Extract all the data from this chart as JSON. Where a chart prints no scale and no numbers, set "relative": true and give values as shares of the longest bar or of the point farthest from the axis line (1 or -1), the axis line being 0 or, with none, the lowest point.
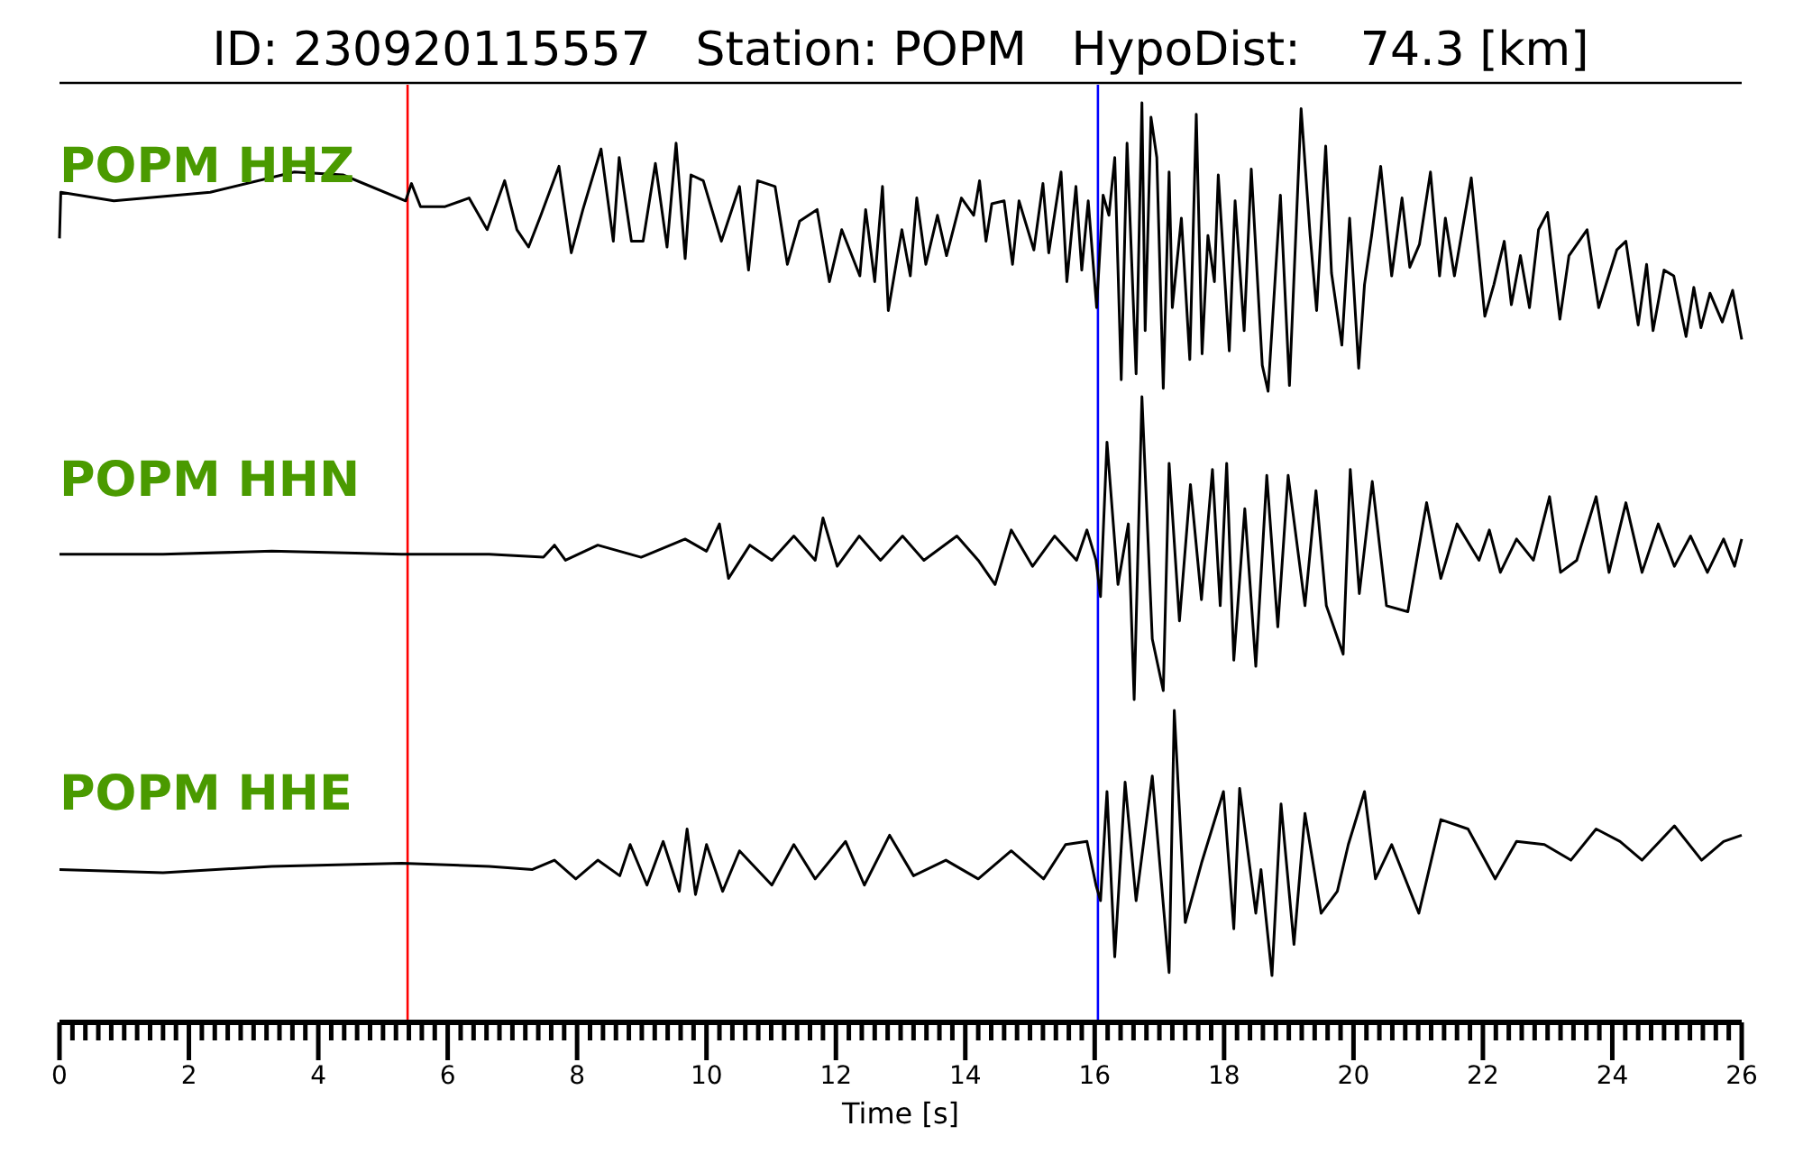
{
  "chart_data": [
    {
      "type": "line",
      "relative": true,
      "title": "ID: 230920115557   Station: POPM   HypoDist:    74.3 [km]",
      "xlim": [
        0,
        26
      ],
      "tick_labels": false,
      "annotations": [
        "POPM HHZ"
      ],
      "ref_lines": [
        {
          "axis": "x",
          "value": 5.38,
          "color": "#ff0000"
        },
        {
          "axis": "x",
          "value": 16.05,
          "color": "#0000ff"
        }
      ],
      "series": [
        {
          "color": "#000000",
          "x": [
            0,
            0.02,
            0.84,
            2.33,
            3.63,
            4.38,
            5.35,
            5.44,
            5.58,
            5.96,
            6.33,
            6.61,
            6.88,
            7.07,
            7.25,
            7.44,
            7.72,
            7.91,
            8.09,
            8.37,
            8.56,
            8.65,
            8.84,
            9.02,
            9.21,
            9.39,
            9.53,
            9.67,
            9.76,
            9.95,
            10.23,
            10.51,
            10.65,
            10.79,
            11.06,
            11.25,
            11.44,
            11.71,
            11.9,
            12.09,
            12.37,
            12.46,
            12.6,
            12.72,
            12.81,
            13.02,
            13.15,
            13.25,
            13.39,
            13.57,
            13.71,
            13.94,
            14.13,
            14.22,
            14.32,
            14.41,
            14.6,
            14.73,
            14.83,
            15.06,
            15.2,
            15.29,
            15.48,
            15.57,
            15.71,
            15.8,
            15.9,
            16.03,
            16.13,
            16.22,
            16.31,
            16.41,
            16.5,
            16.64,
            16.73,
            16.78,
            16.87,
            16.96,
            17.06,
            17.15,
            17.2,
            17.34,
            17.47,
            17.57,
            17.66,
            17.75,
            17.85,
            17.91,
            18.08,
            18.17,
            18.31,
            18.42,
            18.59,
            18.68,
            18.87,
            19.01,
            19.19,
            19.33,
            19.43,
            19.57,
            19.66,
            19.82,
            19.94,
            20.08,
            20.17,
            20.28,
            20.42,
            20.59,
            20.75,
            20.87,
            21.02,
            21.19,
            21.33,
            21.42,
            21.56,
            21.82,
            22.03,
            22.17,
            22.33,
            22.44,
            22.58,
            22.72,
            22.86,
            23,
            23.19,
            23.33,
            23.61,
            23.79,
            24.07,
            24.21,
            24.4,
            24.53,
            24.63,
            24.8,
            24.95,
            25.14,
            25.26,
            25.37,
            25.51,
            25.7,
            25.86,
            26
          ],
          "values": [
            0.53,
            0.69,
            0.66,
            0.69,
            0.76,
            0.75,
            0.66,
            0.72,
            0.64,
            0.64,
            0.67,
            0.56,
            0.73,
            0.56,
            0.5,
            0.61,
            0.78,
            0.48,
            0.63,
            0.84,
            0.52,
            0.81,
            0.52,
            0.52,
            0.79,
            0.5,
            0.86,
            0.46,
            0.75,
            0.73,
            0.52,
            0.71,
            0.42,
            0.73,
            0.71,
            0.44,
            0.59,
            0.63,
            0.38,
            0.56,
            0.4,
            0.63,
            0.38,
            0.71,
            0.28,
            0.56,
            0.4,
            0.67,
            0.44,
            0.61,
            0.47,
            0.67,
            0.61,
            0.73,
            0.52,
            0.65,
            0.66,
            0.44,
            0.66,
            0.49,
            0.72,
            0.48,
            0.76,
            0.38,
            0.71,
            0.42,
            0.66,
            0.29,
            0.68,
            0.61,
            0.81,
            0.04,
            0.86,
            0.06,
            1.0,
            0.21,
            0.95,
            0.81,
            0.01,
            0.76,
            0.29,
            0.6,
            0.11,
            0.96,
            0.13,
            0.54,
            0.38,
            0.75,
            0.14,
            0.66,
            0.21,
            0.77,
            0.09,
            0.0,
            0.68,
            0.02,
            0.98,
            0.54,
            0.28,
            0.85,
            0.41,
            0.16,
            0.6,
            0.08,
            0.37,
            0.54,
            0.78,
            0.4,
            0.67,
            0.43,
            0.51,
            0.76,
            0.4,
            0.6,
            0.4,
            0.74,
            0.26,
            0.37,
            0.52,
            0.3,
            0.47,
            0.29,
            0.56,
            0.62,
            0.25,
            0.47,
            0.56,
            0.29,
            0.49,
            0.52,
            0.23,
            0.44,
            0.21,
            0.42,
            0.4,
            0.19,
            0.36,
            0.22,
            0.34,
            0.24,
            0.35,
            0.18
          ]
        }
      ]
    },
    {
      "type": "line",
      "relative": true,
      "xlim": [
        0,
        26
      ],
      "tick_labels": false,
      "annotations": [
        "POPM HHN"
      ],
      "ref_lines": [
        {
          "axis": "x",
          "value": 5.38,
          "color": "#ff0000"
        },
        {
          "axis": "x",
          "value": 16.05,
          "color": "#0000ff"
        }
      ],
      "series": [
        {
          "color": "#000000",
          "x": [
            0,
            1.6,
            3.28,
            5.29,
            6.64,
            7.48,
            7.65,
            7.82,
            8.32,
            8.99,
            9.67,
            10,
            10.2,
            10.34,
            10.67,
            11.01,
            11.35,
            11.68,
            11.8,
            12.02,
            12.36,
            12.69,
            13.03,
            13.36,
            13.87,
            14.2,
            14.46,
            14.71,
            15.04,
            15.38,
            15.72,
            15.88,
            16.02,
            16.09,
            16.19,
            16.36,
            16.52,
            16.61,
            16.73,
            16.89,
            17.06,
            17.15,
            17.31,
            17.48,
            17.65,
            17.82,
            17.94,
            18.04,
            18.15,
            18.32,
            18.49,
            18.66,
            18.83,
            18.99,
            19.25,
            19.42,
            19.58,
            19.84,
            19.95,
            20.09,
            20.29,
            20.51,
            20.84,
            21.13,
            21.35,
            21.6,
            21.94,
            22.1,
            22.27,
            22.52,
            22.78,
            23.03,
            23.2,
            23.45,
            23.75,
            23.95,
            24.21,
            24.46,
            24.71,
            24.96,
            25.21,
            25.47,
            25.72,
            25.89,
            26
          ],
          "values": [
            0.48,
            0.48,
            0.49,
            0.48,
            0.48,
            0.47,
            0.51,
            0.46,
            0.51,
            0.47,
            0.53,
            0.49,
            0.58,
            0.4,
            0.51,
            0.46,
            0.54,
            0.46,
            0.6,
            0.44,
            0.54,
            0.46,
            0.54,
            0.46,
            0.54,
            0.46,
            0.38,
            0.56,
            0.44,
            0.54,
            0.46,
            0.56,
            0.46,
            0.34,
            0.85,
            0.38,
            0.58,
            0.0,
            1.0,
            0.2,
            0.03,
            0.78,
            0.26,
            0.71,
            0.33,
            0.76,
            0.31,
            0.78,
            0.13,
            0.63,
            0.11,
            0.74,
            0.24,
            0.74,
            0.31,
            0.69,
            0.31,
            0.15,
            0.76,
            0.35,
            0.72,
            0.31,
            0.29,
            0.65,
            0.4,
            0.58,
            0.46,
            0.56,
            0.42,
            0.53,
            0.46,
            0.67,
            0.42,
            0.46,
            0.67,
            0.42,
            0.65,
            0.42,
            0.58,
            0.44,
            0.54,
            0.42,
            0.53,
            0.44,
            0.53
          ]
        }
      ]
    },
    {
      "type": "line",
      "relative": true,
      "xlim": [
        0,
        26
      ],
      "tick_labels": "x",
      "xlabel": "Time [s]",
      "annotations": [
        "POPM HHE"
      ],
      "ref_lines": [
        {
          "axis": "x",
          "value": 5.38,
          "color": "#ff0000"
        },
        {
          "axis": "x",
          "value": 16.05,
          "color": "#0000ff"
        }
      ],
      "xticks": [
        0,
        {
          "value": 0.2,
          "label": null
        },
        {
          "value": 0.4,
          "label": null
        },
        {
          "value": 0.6,
          "label": null
        },
        {
          "value": 0.8,
          "label": null
        },
        {
          "value": 1,
          "label": null
        },
        {
          "value": 1.2,
          "label": null
        },
        {
          "value": 1.4,
          "label": null
        },
        {
          "value": 1.6,
          "label": null
        },
        {
          "value": 1.8,
          "label": null
        },
        2,
        {
          "value": 2.2,
          "label": null
        },
        {
          "value": 2.4,
          "label": null
        },
        {
          "value": 2.6,
          "label": null
        },
        {
          "value": 2.8,
          "label": null
        },
        {
          "value": 3,
          "label": null
        },
        {
          "value": 3.2,
          "label": null
        },
        {
          "value": 3.4,
          "label": null
        },
        {
          "value": 3.6,
          "label": null
        },
        {
          "value": 3.8,
          "label": null
        },
        4,
        {
          "value": 4.2,
          "label": null
        },
        {
          "value": 4.4,
          "label": null
        },
        {
          "value": 4.6,
          "label": null
        },
        {
          "value": 4.8,
          "label": null
        },
        {
          "value": 5,
          "label": null
        },
        {
          "value": 5.2,
          "label": null
        },
        {
          "value": 5.4,
          "label": null
        },
        {
          "value": 5.6,
          "label": null
        },
        {
          "value": 5.8,
          "label": null
        },
        6,
        {
          "value": 6.2,
          "label": null
        },
        {
          "value": 6.4,
          "label": null
        },
        {
          "value": 6.6,
          "label": null
        },
        {
          "value": 6.8,
          "label": null
        },
        {
          "value": 7,
          "label": null
        },
        {
          "value": 7.2,
          "label": null
        },
        {
          "value": 7.4,
          "label": null
        },
        {
          "value": 7.6,
          "label": null
        },
        {
          "value": 7.8,
          "label": null
        },
        8,
        {
          "value": 8.2,
          "label": null
        },
        {
          "value": 8.4,
          "label": null
        },
        {
          "value": 8.6,
          "label": null
        },
        {
          "value": 8.8,
          "label": null
        },
        {
          "value": 9,
          "label": null
        },
        {
          "value": 9.2,
          "label": null
        },
        {
          "value": 9.4,
          "label": null
        },
        {
          "value": 9.6,
          "label": null
        },
        {
          "value": 9.8,
          "label": null
        },
        10,
        {
          "value": 10.2,
          "label": null
        },
        {
          "value": 10.4,
          "label": null
        },
        {
          "value": 10.6,
          "label": null
        },
        {
          "value": 10.8,
          "label": null
        },
        {
          "value": 11,
          "label": null
        },
        {
          "value": 11.2,
          "label": null
        },
        {
          "value": 11.4,
          "label": null
        },
        {
          "value": 11.6,
          "label": null
        },
        {
          "value": 11.8,
          "label": null
        },
        12,
        {
          "value": 12.2,
          "label": null
        },
        {
          "value": 12.4,
          "label": null
        },
        {
          "value": 12.6,
          "label": null
        },
        {
          "value": 12.8,
          "label": null
        },
        {
          "value": 13,
          "label": null
        },
        {
          "value": 13.2,
          "label": null
        },
        {
          "value": 13.4,
          "label": null
        },
        {
          "value": 13.6,
          "label": null
        },
        {
          "value": 13.8,
          "label": null
        },
        14,
        {
          "value": 14.2,
          "label": null
        },
        {
          "value": 14.4,
          "label": null
        },
        {
          "value": 14.6,
          "label": null
        },
        {
          "value": 14.8,
          "label": null
        },
        {
          "value": 15,
          "label": null
        },
        {
          "value": 15.2,
          "label": null
        },
        {
          "value": 15.4,
          "label": null
        },
        {
          "value": 15.6,
          "label": null
        },
        {
          "value": 15.8,
          "label": null
        },
        16,
        {
          "value": 16.2,
          "label": null
        },
        {
          "value": 16.4,
          "label": null
        },
        {
          "value": 16.6,
          "label": null
        },
        {
          "value": 16.8,
          "label": null
        },
        {
          "value": 17,
          "label": null
        },
        {
          "value": 17.2,
          "label": null
        },
        {
          "value": 17.4,
          "label": null
        },
        {
          "value": 17.6,
          "label": null
        },
        {
          "value": 17.8,
          "label": null
        },
        18,
        {
          "value": 18.2,
          "label": null
        },
        {
          "value": 18.4,
          "label": null
        },
        {
          "value": 18.6,
          "label": null
        },
        {
          "value": 18.8,
          "label": null
        },
        {
          "value": 19,
          "label": null
        },
        {
          "value": 19.2,
          "label": null
        },
        {
          "value": 19.4,
          "label": null
        },
        {
          "value": 19.6,
          "label": null
        },
        {
          "value": 19.8,
          "label": null
        },
        20,
        {
          "value": 20.2,
          "label": null
        },
        {
          "value": 20.4,
          "label": null
        },
        {
          "value": 20.6,
          "label": null
        },
        {
          "value": 20.8,
          "label": null
        },
        {
          "value": 21,
          "label": null
        },
        {
          "value": 21.2,
          "label": null
        },
        {
          "value": 21.4,
          "label": null
        },
        {
          "value": 21.6,
          "label": null
        },
        {
          "value": 21.8,
          "label": null
        },
        22,
        {
          "value": 22.2,
          "label": null
        },
        {
          "value": 22.4,
          "label": null
        },
        {
          "value": 22.6,
          "label": null
        },
        {
          "value": 22.8,
          "label": null
        },
        {
          "value": 23,
          "label": null
        },
        {
          "value": 23.2,
          "label": null
        },
        {
          "value": 23.4,
          "label": null
        },
        {
          "value": 23.6,
          "label": null
        },
        {
          "value": 23.8,
          "label": null
        },
        24,
        {
          "value": 24.2,
          "label": null
        },
        {
          "value": 24.4,
          "label": null
        },
        {
          "value": 24.6,
          "label": null
        },
        {
          "value": 24.8,
          "label": null
        },
        {
          "value": 25,
          "label": null
        },
        {
          "value": 25.2,
          "label": null
        },
        {
          "value": 25.4,
          "label": null
        },
        {
          "value": 25.6,
          "label": null
        },
        {
          "value": 25.8,
          "label": null
        },
        26
      ],
      "series": [
        {
          "color": "#000000",
          "x": [
            0,
            1.6,
            3.28,
            5.29,
            6.64,
            7.31,
            7.65,
            7.98,
            8.32,
            8.66,
            8.82,
            9.08,
            9.33,
            9.58,
            9.7,
            9.83,
            10,
            10.25,
            10.51,
            11.01,
            11.35,
            11.68,
            12.15,
            12.44,
            12.83,
            13.2,
            13.7,
            14.2,
            14.71,
            15.21,
            15.55,
            15.88,
            16.02,
            16.09,
            16.19,
            16.31,
            16.47,
            16.64,
            16.89,
            17.15,
            17.23,
            17.4,
            17.65,
            17.99,
            18.15,
            18.24,
            18.49,
            18.57,
            18.74,
            18.88,
            19.08,
            19.25,
            19.5,
            19.75,
            19.92,
            20.17,
            20.34,
            20.59,
            21.01,
            21.35,
            21.77,
            22.19,
            22.52,
            22.95,
            23.36,
            23.75,
            24.12,
            24.46,
            24.96,
            25.38,
            25.72,
            26
          ],
          "values": [
            0.49,
            0.48,
            0.5,
            0.51,
            0.5,
            0.49,
            0.52,
            0.46,
            0.52,
            0.47,
            0.57,
            0.44,
            0.58,
            0.42,
            0.62,
            0.41,
            0.57,
            0.42,
            0.55,
            0.44,
            0.57,
            0.46,
            0.58,
            0.44,
            0.6,
            0.47,
            0.52,
            0.46,
            0.55,
            0.46,
            0.57,
            0.58,
            0.44,
            0.39,
            0.74,
            0.21,
            0.77,
            0.39,
            0.79,
            0.16,
            1.0,
            0.32,
            0.51,
            0.74,
            0.3,
            0.75,
            0.35,
            0.49,
            0.15,
            0.7,
            0.25,
            0.67,
            0.35,
            0.42,
            0.57,
            0.74,
            0.46,
            0.57,
            0.35,
            0.65,
            0.62,
            0.46,
            0.58,
            0.57,
            0.52,
            0.62,
            0.58,
            0.52,
            0.63,
            0.52,
            0.58,
            0.6
          ]
        }
      ]
    }
  ]
}
